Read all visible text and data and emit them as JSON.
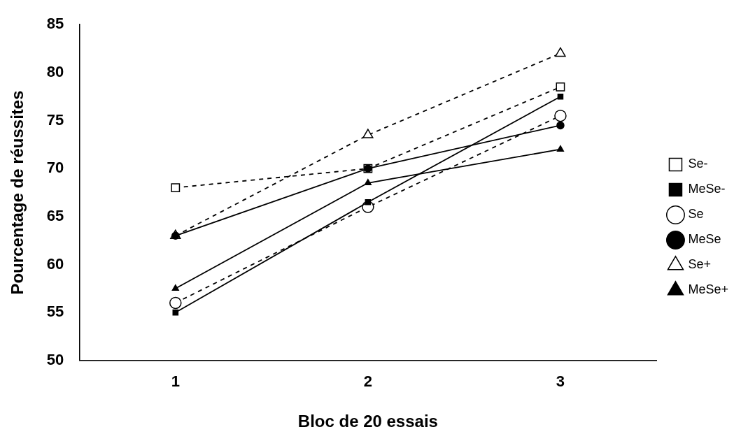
{
  "chart_data": {
    "type": "line",
    "xlabel": "Bloc de 20 essais",
    "ylabel": "Pourcentage de réussites",
    "categories": [
      "1",
      "2",
      "3"
    ],
    "ylim": [
      50,
      85
    ],
    "yticks": [
      50,
      55,
      60,
      65,
      70,
      75,
      80,
      85
    ],
    "grid": false,
    "legend": "right",
    "series": [
      {
        "name": "Se-",
        "color": "#000000",
        "values": [
          68,
          70,
          78.5
        ],
        "marker": "square",
        "line_style": "dashed"
      },
      {
        "name": "MeSe-",
        "color": "#000000",
        "values": [
          55,
          66.5,
          77.5
        ],
        "marker": "square",
        "line_style": "solid"
      },
      {
        "name": "Se",
        "color": "#000000",
        "values": [
          56,
          66,
          75.5
        ],
        "marker": "circle",
        "line_style": "dashed"
      },
      {
        "name": "MeSe",
        "color": "#000000",
        "values": [
          63,
          70,
          74.5
        ],
        "marker": "circle",
        "line_style": "solid"
      },
      {
        "name": "Se+",
        "color": "#000000",
        "values": [
          63,
          73.5,
          82
        ],
        "marker": "triangle",
        "line_style": "dashed"
      },
      {
        "name": "MeSe+",
        "color": "#000000",
        "values": [
          57.5,
          68.5,
          72
        ],
        "marker": "triangle",
        "line_style": "solid"
      }
    ]
  }
}
